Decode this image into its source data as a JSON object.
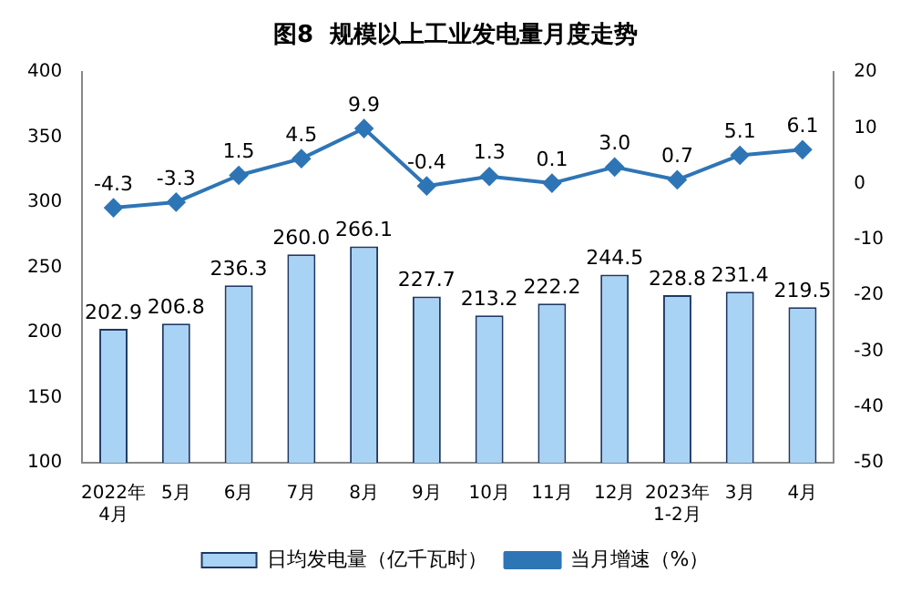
{
  "chart_data": {
    "type": "bar",
    "title": "图8  规模以上工业发电量月度走势",
    "categories": [
      "2022年\n4月",
      "5月",
      "6月",
      "7月",
      "8月",
      "9月",
      "10月",
      "11月",
      "12月",
      "2023年\n1-2月",
      "3月",
      "4月"
    ],
    "series": [
      {
        "name": "日均发电量（亿千瓦时）",
        "color": "#a9d3f5",
        "values": [
          202.9,
          206.8,
          236.3,
          260.0,
          266.1,
          227.7,
          213.2,
          222.2,
          244.5,
          228.8,
          231.4,
          219.5
        ],
        "value_labels": [
          "202.9",
          "206.8",
          "236.3",
          "260.0",
          "266.1",
          "227.7",
          "213.2",
          "222.2",
          "244.5",
          "228.8",
          "231.4",
          "219.5"
        ]
      },
      {
        "name": "当月增速（%）",
        "type": "line",
        "axis": "y2",
        "color": "#2e75b6",
        "marker": "diamond",
        "values": [
          -4.3,
          -3.3,
          1.5,
          4.5,
          9.9,
          -0.4,
          1.3,
          0.1,
          3.0,
          0.7,
          5.1,
          6.1
        ],
        "value_labels": [
          "-4.3",
          "-3.3",
          "1.5",
          "4.5",
          "9.9",
          "-0.4",
          "1.3",
          "0.1",
          "3.0",
          "0.7",
          "5.1",
          "6.1"
        ]
      }
    ],
    "ylim": [
      100,
      400
    ],
    "yticks": [
      100,
      150,
      200,
      250,
      300,
      350,
      400
    ],
    "y2lim": [
      -50,
      20
    ],
    "y2ticks": [
      -50,
      -40,
      -30,
      -20,
      -10,
      0,
      10,
      20
    ],
    "grid": false,
    "legend": "bottom"
  }
}
